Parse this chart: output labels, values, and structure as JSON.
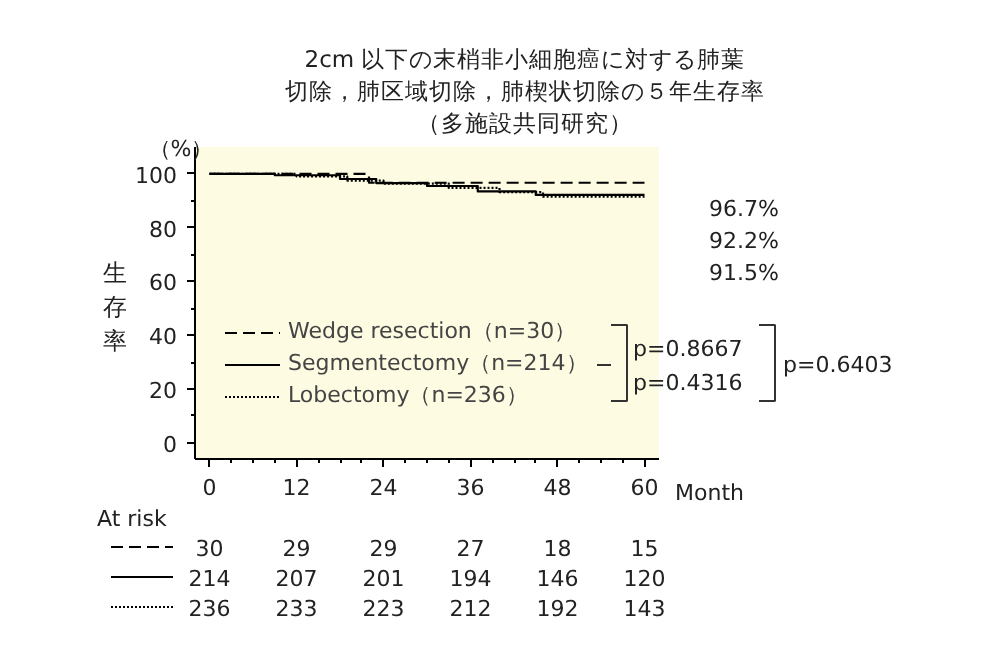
{
  "chart_data": {
    "type": "step",
    "title": "2cm 以下の末梢非小細胞癌に対する肺葉切除，肺区域切除，肺楔状切除の５年生存率",
    "subtitle": "（多施設共同研究）",
    "xlabel": "Month",
    "ylabel": "生存率",
    "xlim": [
      -2,
      62
    ],
    "ylim": [
      -6,
      110
    ],
    "xticks": [
      0,
      12,
      24,
      36,
      48,
      60
    ],
    "yticks": [
      0,
      20,
      40,
      60,
      80,
      100
    ],
    "legend": "bottom left",
    "series": [
      {
        "name": "Wedge resection（n=30）",
        "color": "#000000",
        "line_style": "dashed",
        "x": [
          0,
          22,
          60
        ],
        "values": [
          100,
          96.7,
          96.7
        ]
      },
      {
        "name": "Segmentectomy（n=214）",
        "color": "#000000",
        "line_style": "solid",
        "x": [
          0,
          9,
          18,
          23,
          30,
          37,
          45,
          60
        ],
        "values": [
          100,
          99.5,
          98.1,
          96.6,
          95.5,
          93.5,
          92.2,
          92.2
        ]
      },
      {
        "name": "Lobectomy（n=236）",
        "color": "#000000",
        "line_style": "dotted",
        "x": [
          0,
          12,
          19,
          24,
          33,
          40,
          46,
          60
        ],
        "values": [
          100,
          99.1,
          97.5,
          96.4,
          94.8,
          93.2,
          91.5,
          91.5
        ]
      }
    ],
    "annotations": [
      "（%）",
      "96.7%",
      "92.2%",
      "91.5%",
      "p=0.8667",
      "p=0.4316",
      "p=0.6403",
      "At risk",
      "30",
      "29",
      "29",
      "27",
      "18",
      "15",
      "214",
      "207",
      "201",
      "194",
      "146",
      "120",
      "236",
      "233",
      "223",
      "212",
      "192",
      "143"
    ]
  }
}
